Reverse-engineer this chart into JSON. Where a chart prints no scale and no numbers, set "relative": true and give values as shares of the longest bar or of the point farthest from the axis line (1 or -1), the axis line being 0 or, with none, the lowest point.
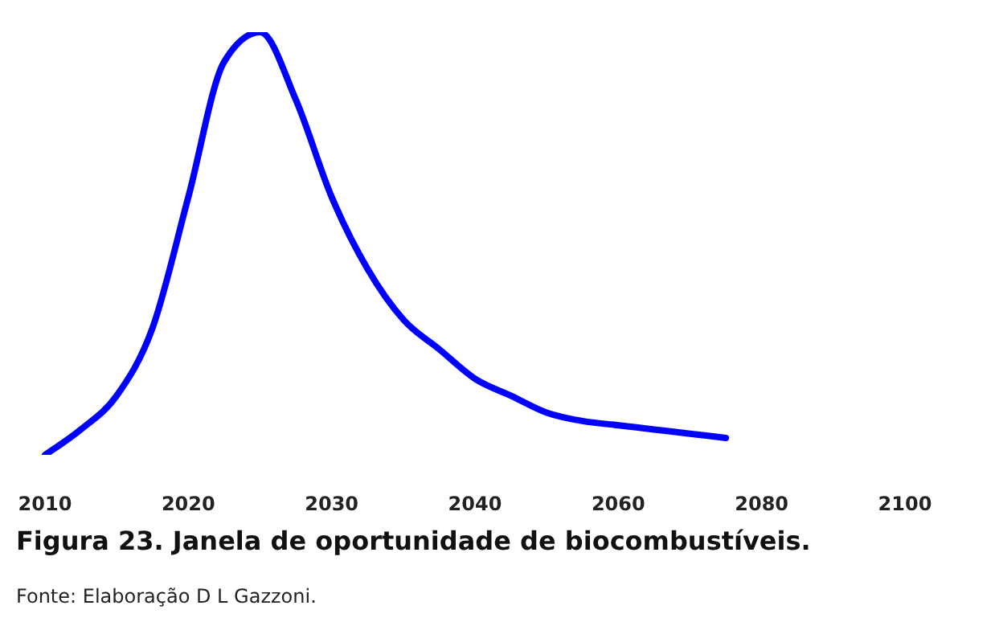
{
  "chart_data": {
    "type": "line",
    "title": "Figura 23. Janela de oportunidade de biocombustíveis.",
    "annotations": [
      "Fonte: Elaboração D L Gazzoni."
    ],
    "relative": true,
    "categories": [
      "2010",
      null,
      null,
      null,
      "2020",
      null,
      null,
      null,
      "2030",
      null,
      null,
      null,
      "2040",
      null,
      null,
      null,
      "2060",
      null,
      null,
      null,
      "2080",
      null,
      null,
      null,
      "2100"
    ],
    "series": [
      {
        "color": "#0000ff",
        "values": [
          0,
          0.06,
          0.14,
          0.3,
          0.61,
          0.93,
          1,
          0.84,
          0.61,
          0.44,
          0.32,
          0.25,
          0.18,
          0.14,
          0.1,
          0.08,
          0.07,
          0.06,
          0.05,
          0.04,
          null,
          null,
          null,
          null,
          null
        ]
      }
    ],
    "grid": false,
    "legend": false,
    "marker": "none",
    "line_style": "solid"
  }
}
